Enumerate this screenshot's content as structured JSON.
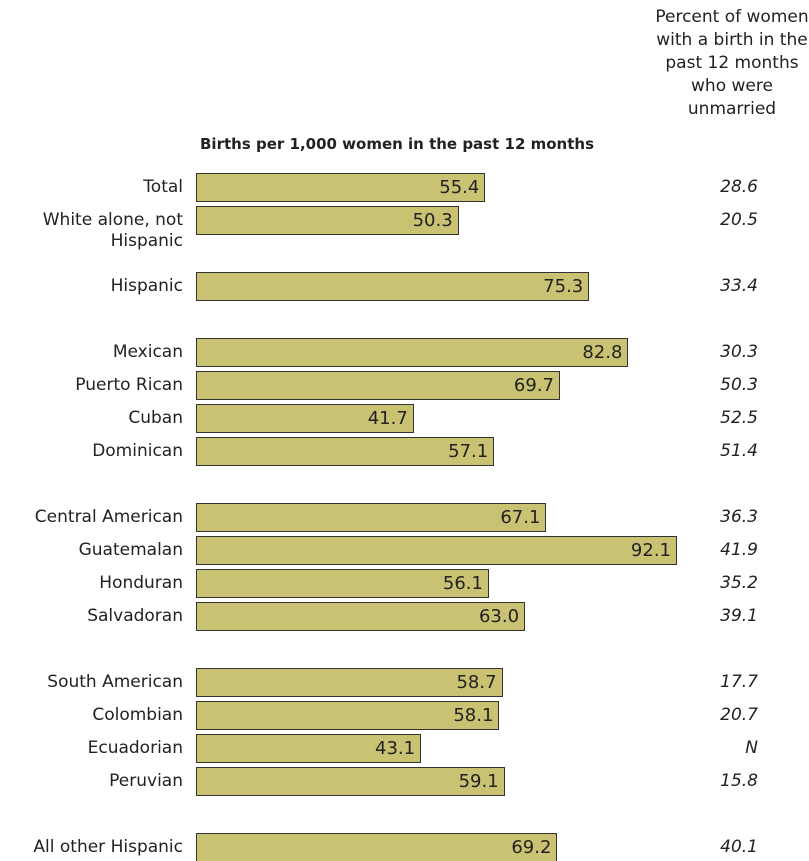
{
  "chart_data": {
    "type": "bar",
    "categories": [
      "Total",
      "White alone, not Hispanic",
      null,
      "Hispanic",
      null,
      "Mexican",
      "Puerto Rican",
      "Cuban",
      "Dominican",
      null,
      "Central American",
      "Guatemalan",
      "Honduran",
      "Salvadoran",
      null,
      "South American",
      "Colombian",
      "Ecuadorian",
      "Peruvian",
      null,
      "All other Hispanic"
    ],
    "series": [
      {
        "name": "Births per 1,000 women in the past 12 months",
        "color": "#c8c272",
        "values": [
          55.4,
          50.3,
          null,
          75.3,
          null,
          82.8,
          69.7,
          41.7,
          57.1,
          null,
          67.1,
          92.1,
          56.1,
          63.0,
          null,
          58.7,
          58.1,
          43.1,
          59.1,
          null,
          69.2
        ],
        "value_labels": [
          "55.4",
          "50.3",
          null,
          "75.3",
          null,
          "82.8",
          "69.7",
          "41.7",
          "57.1",
          null,
          "67.1",
          "92.1",
          "56.1",
          "63.0",
          null,
          "58.7",
          "58.1",
          "43.1",
          "59.1",
          null,
          "69.2"
        ]
      },
      {
        "name": "Percent of women with a birth in the past 12 months who were unmarried",
        "values": [
          28.6,
          20.5,
          null,
          33.4,
          null,
          30.3,
          50.3,
          52.5,
          51.4,
          null,
          36.3,
          41.9,
          35.2,
          39.1,
          null,
          17.7,
          20.7,
          null,
          15.8,
          null,
          40.1
        ],
        "value_labels": [
          "28.6",
          "20.5",
          null,
          "33.4",
          null,
          "30.3",
          "50.3",
          "52.5",
          "51.4",
          null,
          "36.3",
          "41.9",
          "35.2",
          "39.1",
          null,
          "17.7",
          "20.7",
          "N",
          "15.8",
          null,
          "40.1"
        ]
      }
    ]
  }
}
